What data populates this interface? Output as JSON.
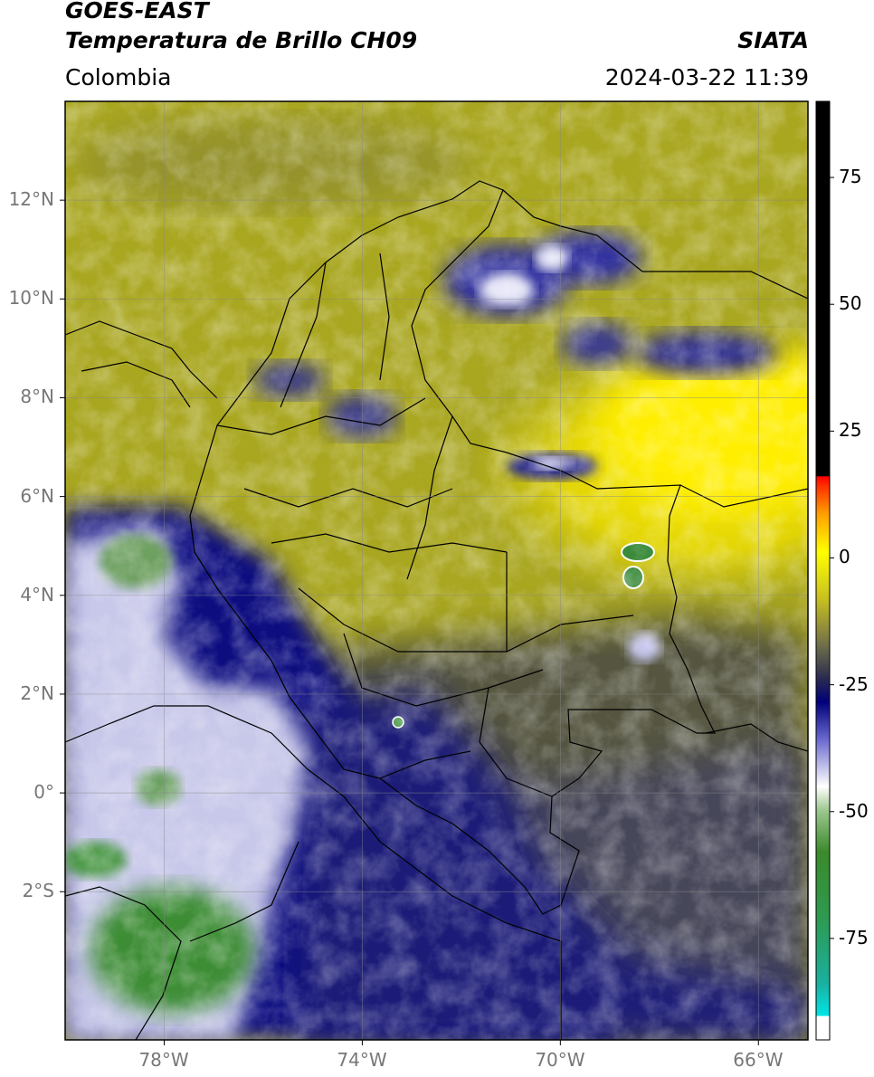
{
  "header": {
    "satellite": "GOES-EAST",
    "product": "Temperatura de Brillo CH09",
    "region": "Colombia",
    "institution": "SIATA",
    "datetime": "2024-03-22 11:39"
  },
  "map": {
    "lon_range": [
      -80,
      -65
    ],
    "lat_range": [
      -5,
      14
    ],
    "lon_ticks": [
      {
        "value": -78,
        "label": "78°W"
      },
      {
        "value": -74,
        "label": "74°W"
      },
      {
        "value": -70,
        "label": "70°W"
      },
      {
        "value": -66,
        "label": "66°W"
      }
    ],
    "lat_ticks": [
      {
        "value": 12,
        "label": "12°N"
      },
      {
        "value": 10,
        "label": "10°N"
      },
      {
        "value": 8,
        "label": "8°N"
      },
      {
        "value": 6,
        "label": "6°N"
      },
      {
        "value": 4,
        "label": "4°N"
      },
      {
        "value": 2,
        "label": "2°N"
      },
      {
        "value": 0,
        "label": "0°"
      },
      {
        "value": -2,
        "label": "2°S"
      }
    ],
    "grid": true
  },
  "colorbar": {
    "range": [
      -95,
      90
    ],
    "ticks": [
      {
        "value": 75,
        "label": "75"
      },
      {
        "value": 50,
        "label": "50"
      },
      {
        "value": 25,
        "label": "25"
      },
      {
        "value": 0,
        "label": "0"
      },
      {
        "value": -25,
        "label": "-25"
      },
      {
        "value": -50,
        "label": "-50"
      },
      {
        "value": -75,
        "label": "-75"
      }
    ]
  }
}
